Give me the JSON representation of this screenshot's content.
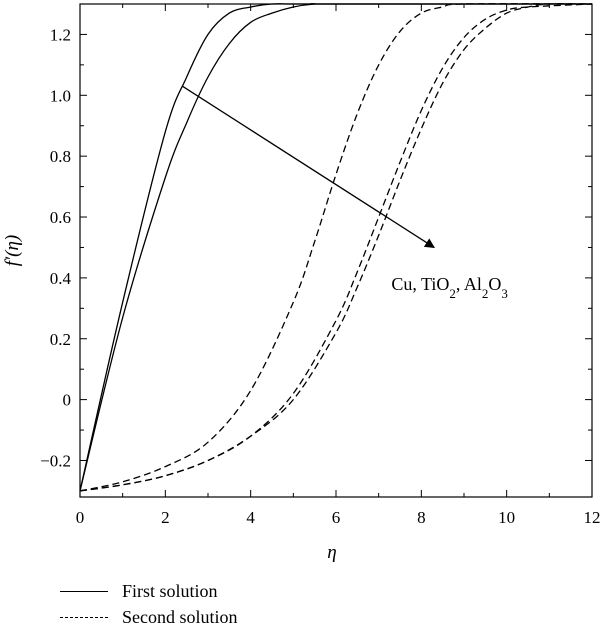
{
  "chart_data": {
    "type": "line",
    "xlabel": "η",
    "ylabel": "f′(η)",
    "xlim": [
      0,
      12
    ],
    "ylim": [
      -0.32,
      1.3
    ],
    "xticks": [
      0,
      2,
      4,
      6,
      8,
      10,
      12
    ],
    "yticks": [
      -0.2,
      0,
      0.2,
      0.4,
      0.6,
      0.8,
      1.0,
      1.2
    ],
    "xtick_labels": [
      "0",
      "2",
      "4",
      "6",
      "8",
      "10",
      "12"
    ],
    "ytick_labels": [
      "−0.2",
      "0",
      "0.2",
      "0.4",
      "0.6",
      "0.8",
      "1.0",
      "1.2"
    ],
    "grid": false,
    "series": [
      {
        "style": "solid",
        "solution": "first",
        "x": [
          0,
          1,
          2,
          2.5,
          3,
          3.5,
          4,
          4.5,
          5,
          6,
          12
        ],
        "y": [
          -0.3,
          0.32,
          0.88,
          1.06,
          1.2,
          1.27,
          1.29,
          1.3,
          1.3,
          1.3,
          1.3
        ]
      },
      {
        "style": "solid",
        "solution": "first",
        "x": [
          0,
          1,
          2,
          2.5,
          3,
          3.5,
          4,
          4.5,
          5,
          5.5,
          6,
          12
        ],
        "y": [
          -0.3,
          0.27,
          0.73,
          0.91,
          1.06,
          1.17,
          1.24,
          1.27,
          1.29,
          1.3,
          1.3,
          1.3
        ]
      },
      {
        "style": "dashed",
        "solution": "second",
        "x": [
          0,
          1,
          2,
          3,
          4,
          5,
          5.5,
          6,
          6.5,
          7,
          7.5,
          8,
          8.5,
          9,
          12
        ],
        "y": [
          -0.3,
          -0.27,
          -0.22,
          -0.14,
          0.03,
          0.32,
          0.52,
          0.74,
          0.94,
          1.1,
          1.21,
          1.27,
          1.29,
          1.3,
          1.3
        ]
      },
      {
        "style": "dashed",
        "solution": "second",
        "x": [
          0,
          1,
          2,
          3,
          4,
          5,
          6,
          6.5,
          7,
          7.5,
          8,
          8.5,
          9,
          9.5,
          10,
          10.5,
          12
        ],
        "y": [
          -0.3,
          -0.28,
          -0.25,
          -0.2,
          -0.12,
          0.02,
          0.26,
          0.42,
          0.6,
          0.78,
          0.95,
          1.09,
          1.19,
          1.25,
          1.28,
          1.29,
          1.3
        ]
      },
      {
        "style": "dashed",
        "solution": "second",
        "x": [
          0,
          1,
          2,
          3,
          4,
          5,
          6,
          6.5,
          7,
          7.5,
          8,
          8.5,
          9,
          9.5,
          10,
          10.5,
          11,
          12
        ],
        "y": [
          -0.3,
          -0.28,
          -0.25,
          -0.2,
          -0.12,
          0.0,
          0.22,
          0.37,
          0.54,
          0.72,
          0.89,
          1.04,
          1.15,
          1.22,
          1.27,
          1.29,
          1.3,
          1.3
        ]
      }
    ],
    "annotation": {
      "text_parts": [
        "Cu, TiO",
        "2",
        ", Al",
        "2",
        "O",
        "3"
      ],
      "arrow_from": [
        2.4,
        1.03
      ],
      "arrow_to": [
        8.3,
        0.5
      ],
      "text_at": [
        8.0,
        0.38
      ]
    },
    "legend": {
      "position": "bottom-left",
      "entries": [
        {
          "style": "solid",
          "label": "First solution"
        },
        {
          "style": "dashed",
          "label": "Second solution"
        }
      ]
    }
  }
}
